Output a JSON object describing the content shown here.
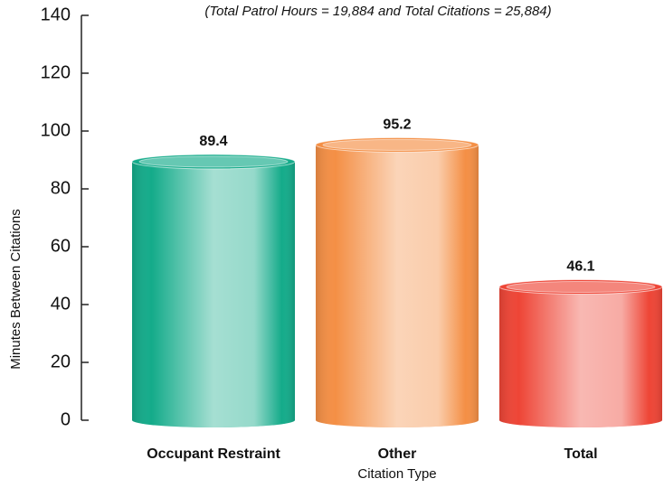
{
  "chart_data": {
    "type": "bar",
    "subtitle": "(Total Patrol Hours = 19,884 and Total Citations = 25,884)",
    "y_label": "Minutes Between Citations",
    "x_label": "Citation Type",
    "categories": [
      "Occupant Restraint",
      "Other",
      "Total"
    ],
    "values": [
      89.4,
      95.2,
      46.1
    ],
    "colors": [
      "#14ab8a",
      "#f48f45",
      "#ee4536"
    ],
    "ylim": [
      0,
      140
    ],
    "yticks": [
      0,
      20,
      40,
      60,
      80,
      100,
      120,
      140
    ]
  }
}
